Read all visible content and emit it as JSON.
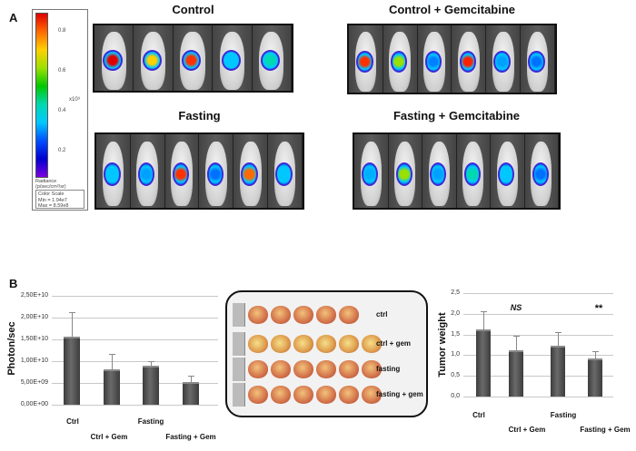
{
  "panel_a": {
    "letter": "A",
    "colorbar": {
      "ticks": [
        "0.8",
        "0.6",
        "0.4",
        "0.2"
      ],
      "unit": "x10⁹",
      "label_line1": "Radiance",
      "label_line2": "(p/sec/cm²/sr)",
      "scale_title": "Color Scale",
      "min": "Min = 1.94e7",
      "max": "Max = 8.59e8"
    },
    "groups": [
      {
        "title": "Control",
        "blobs": [
          "#e00000",
          "#ffd000",
          "#ff3000",
          "#00c8ff",
          "#00d8b0"
        ]
      },
      {
        "title": "Control + Gemcitabine",
        "blobs": [
          "#ff3000",
          "#9be000",
          "#0080ff",
          "#ff2000",
          "#00a0ff",
          "#0070ff"
        ]
      },
      {
        "title": "Fasting",
        "blobs": [
          "#00c8ff",
          "#00a0ff",
          "#ff3000",
          "#0070ff",
          "#ff6a00",
          "#00c8ff"
        ]
      },
      {
        "title": "Fasting + Gemcitabine",
        "blobs": [
          "#00b0ff",
          "#9be000",
          "#00a0ff",
          "#00d8b0",
          "#00c8ff",
          "#0070ff"
        ]
      }
    ]
  },
  "panel_b": {
    "letter": "B",
    "photo": {
      "rows": [
        {
          "label": "ctrl",
          "count": 5
        },
        {
          "label": "ctrl + gem",
          "count": 6
        },
        {
          "label": "fasting",
          "count": 6
        },
        {
          "label": "fasting + gem",
          "count": 6
        }
      ]
    }
  },
  "chart_data": [
    {
      "type": "bar",
      "categories": [
        "Ctrl",
        "Ctrl + Gem",
        "Fasting",
        "Fasting + Gem"
      ],
      "values": [
        15700000000.0,
        8200000000.0,
        8900000000.0,
        5300000000.0
      ],
      "error_upper": [
        21300000000.0,
        11600000000.0,
        10000000000.0,
        6600000000.0
      ],
      "ylabel": "Photon/sec",
      "ylim": [
        0,
        25000000000.0
      ],
      "yticks": [
        "0,00E+00",
        "5,00E+09",
        "1,00E+10",
        "1,50E+10",
        "2,00E+10",
        "2,50E+10"
      ],
      "grid": true
    },
    {
      "type": "bar",
      "categories": [
        "Ctrl",
        "Ctrl + Gem",
        "Fasting",
        "Fasting + Gem"
      ],
      "values": [
        1.63,
        1.12,
        1.23,
        0.93
      ],
      "error_upper": [
        2.07,
        1.48,
        1.55,
        1.1
      ],
      "ylabel": "Tumor weight",
      "ylim": [
        0,
        2.5
      ],
      "yticks": [
        "0,0",
        "0,5",
        "1,0",
        "1,5",
        "2,0",
        "2,5"
      ],
      "annotations": [
        "NS",
        "**"
      ],
      "grid": true
    }
  ]
}
